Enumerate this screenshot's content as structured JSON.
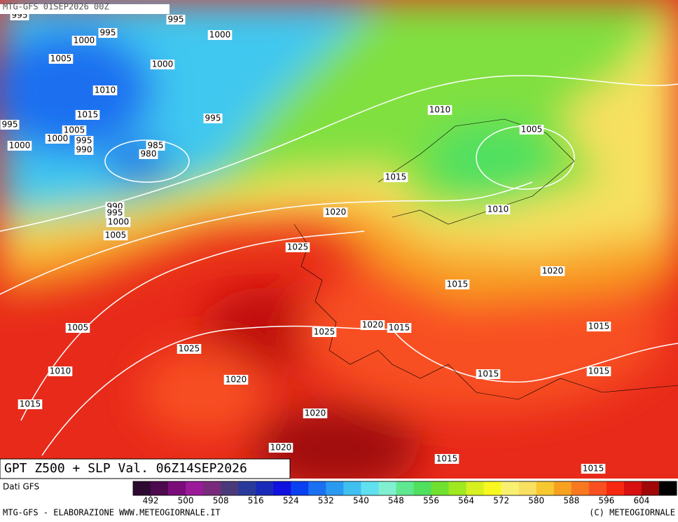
{
  "header": {
    "title": "MTG-GFS 01SEP2026 00Z"
  },
  "map_title": "GPT Z500 + SLP Val. 06Z14SEP2026",
  "isobar_labels": [
    995,
    995,
    995,
    1000,
    1000,
    1005,
    1000,
    1010,
    1015,
    995,
    1010,
    995,
    1005,
    1000,
    995,
    1000,
    990,
    985,
    980,
    1005,
    1015,
    990,
    995,
    1000,
    1005,
    1020,
    1010,
    1025,
    1020,
    1015,
    1005,
    1020,
    1015,
    1015,
    1025,
    1025,
    1010,
    1015,
    1015,
    1020,
    1015,
    1020,
    1020,
    1015,
    1015
  ],
  "colorbar": {
    "label": "Dati GFS",
    "range": [
      488,
      612
    ],
    "ticks": [
      492,
      500,
      508,
      516,
      524,
      532,
      540,
      548,
      556,
      564,
      572,
      580,
      588,
      596,
      604
    ],
    "colors": [
      "#2e0a33",
      "#4e0a4e",
      "#7a0c7a",
      "#9a1a9a",
      "#7a2a7a",
      "#4a3a7a",
      "#2a3a9a",
      "#1a2ab8",
      "#1010e0",
      "#0a40f0",
      "#1a70f0",
      "#2a9af0",
      "#40c0f0",
      "#60e0f0",
      "#80f0d0",
      "#60e890",
      "#50e060",
      "#70e030",
      "#a0e820",
      "#d8f020",
      "#f8f820",
      "#f8f070",
      "#f8e060",
      "#f8c830",
      "#f8a020",
      "#f87820",
      "#f85020",
      "#f82810",
      "#d81010",
      "#a00808",
      "#000000"
    ]
  },
  "footer": {
    "left": "MTG-GFS - ELABORAZIONE WWW.METEOGIORNALE.IT",
    "right": "(C) METEOGIORNALE"
  }
}
